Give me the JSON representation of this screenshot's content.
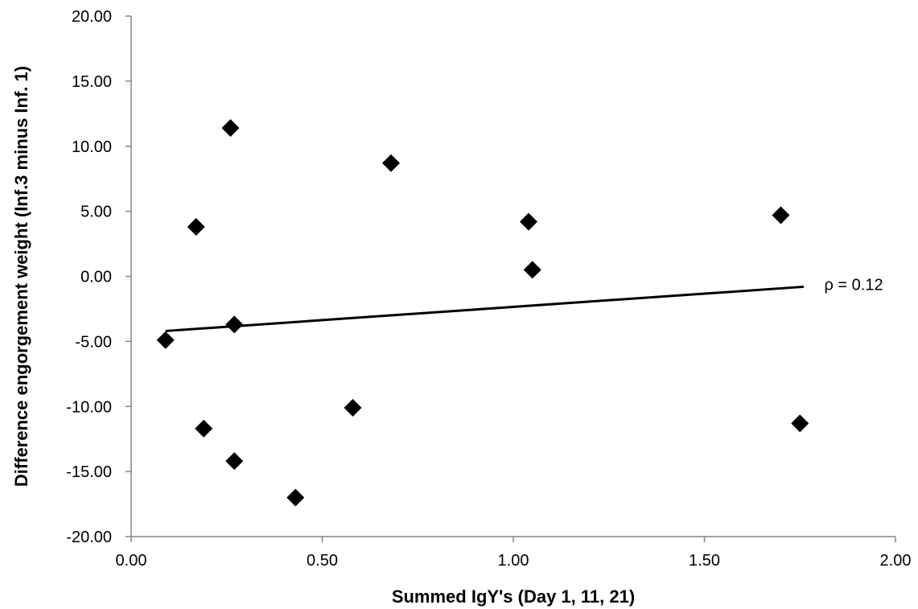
{
  "chart_data": {
    "type": "scatter",
    "title": "",
    "xlabel": "Summed IgY's (Day 1, 11, 21)",
    "ylabel": "Difference engorgement weight  (Inf.3 minus  Inf. 1)",
    "xlim": [
      0,
      2
    ],
    "ylim": [
      -20,
      20
    ],
    "x_ticks": [
      0,
      0.5,
      1,
      1.5,
      2
    ],
    "x_tick_labels": [
      "0.00",
      "0.50",
      "1.00",
      "1.50",
      "2.00"
    ],
    "y_ticks": [
      20,
      15,
      10,
      5,
      0,
      -5,
      -10,
      -15,
      -20
    ],
    "y_tick_labels": [
      "20.00",
      "15.00",
      "10.00",
      "5.00",
      "0.00",
      "-5.00",
      "-10.00",
      "-15.00",
      "-20.00"
    ],
    "grid": false,
    "legend": "none",
    "marker": "diamond",
    "marker_color": "#000000",
    "points": [
      {
        "x": 0.09,
        "y": -4.9
      },
      {
        "x": 0.17,
        "y": 3.8
      },
      {
        "x": 0.19,
        "y": -11.7
      },
      {
        "x": 0.26,
        "y": 11.4
      },
      {
        "x": 0.27,
        "y": -14.2
      },
      {
        "x": 0.27,
        "y": -3.7
      },
      {
        "x": 0.43,
        "y": -17.0
      },
      {
        "x": 0.58,
        "y": -10.1
      },
      {
        "x": 0.68,
        "y": 8.7
      },
      {
        "x": 1.04,
        "y": 4.2
      },
      {
        "x": 1.05,
        "y": 0.5
      },
      {
        "x": 1.7,
        "y": 4.7
      },
      {
        "x": 1.75,
        "y": -11.3
      }
    ],
    "trendline": {
      "x": [
        0.09,
        1.76
      ],
      "y": [
        -4.2,
        -0.8
      ],
      "color": "#000000"
    },
    "annotation": {
      "text": "ρ = 0.12",
      "x": 1.78,
      "y": -0.8
    }
  }
}
